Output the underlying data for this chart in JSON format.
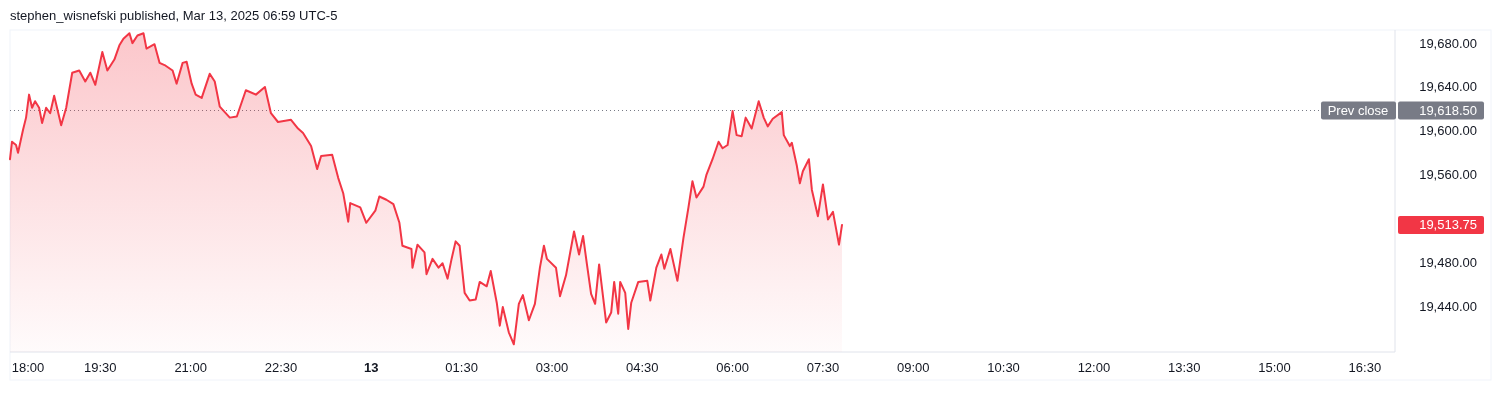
{
  "chart_data": {
    "type": "area",
    "title": "stephen_wisnefski published, Mar 13, 2025 06:59 UTC-5",
    "x": [
      "2025-03-12T18:00",
      "2025-03-12T18:02",
      "2025-03-12T18:06",
      "2025-03-12T18:08",
      "2025-03-12T18:13",
      "2025-03-12T18:16",
      "2025-03-12T18:19",
      "2025-03-12T18:22",
      "2025-03-12T18:25",
      "2025-03-12T18:29",
      "2025-03-12T18:32",
      "2025-03-12T18:36",
      "2025-03-12T18:40",
      "2025-03-12T18:44",
      "2025-03-12T18:51",
      "2025-03-12T18:56",
      "2025-03-12T19:02",
      "2025-03-12T19:09",
      "2025-03-12T19:15",
      "2025-03-12T19:20",
      "2025-03-12T19:25",
      "2025-03-12T19:32",
      "2025-03-12T19:37",
      "2025-03-12T19:44",
      "2025-03-12T19:49",
      "2025-03-12T19:53",
      "2025-03-12T19:59",
      "2025-03-12T20:02",
      "2025-03-12T20:07",
      "2025-03-12T20:13",
      "2025-03-12T20:16",
      "2025-03-12T20:24",
      "2025-03-12T20:29",
      "2025-03-12T20:34",
      "2025-03-12T20:42",
      "2025-03-12T20:46",
      "2025-03-12T20:52",
      "2025-03-12T20:56",
      "2025-03-12T21:01",
      "2025-03-12T21:05",
      "2025-03-12T21:11",
      "2025-03-12T21:19",
      "2025-03-12T21:24",
      "2025-03-12T21:29",
      "2025-03-12T21:39",
      "2025-03-12T21:46",
      "2025-03-12T21:55",
      "2025-03-12T22:05",
      "2025-03-12T22:14",
      "2025-03-12T22:20",
      "2025-03-12T22:27",
      "2025-03-12T22:40",
      "2025-03-12T22:47",
      "2025-03-12T22:52",
      "2025-03-12T23:00",
      "2025-03-12T23:06",
      "2025-03-12T23:10",
      "2025-03-12T23:21",
      "2025-03-12T23:27",
      "2025-03-12T23:32",
      "2025-03-12T23:37",
      "2025-03-12T23:39",
      "2025-03-12T23:49",
      "2025-03-12T23:55",
      "2025-03-13T00:04",
      "2025-03-13T00:08",
      "2025-03-13T00:15",
      "2025-03-13T00:22",
      "2025-03-13T00:28",
      "2025-03-13T00:31",
      "2025-03-13T00:40",
      "2025-03-13T00:41",
      "2025-03-13T00:46",
      "2025-03-13T00:53",
      "2025-03-13T00:55",
      "2025-03-13T01:01",
      "2025-03-13T01:07",
      "2025-03-13T01:11",
      "2025-03-13T01:16",
      "2025-03-13T01:20",
      "2025-03-13T01:24",
      "2025-03-13T01:28",
      "2025-03-13T01:33",
      "2025-03-13T01:38",
      "2025-03-13T01:44",
      "2025-03-13T01:48",
      "2025-03-13T01:55",
      "2025-03-13T01:59",
      "2025-03-13T02:05",
      "2025-03-13T02:08",
      "2025-03-13T02:11",
      "2025-03-13T02:17",
      "2025-03-13T02:22",
      "2025-03-13T02:27",
      "2025-03-13T02:31",
      "2025-03-13T02:37",
      "2025-03-13T02:43",
      "2025-03-13T02:48",
      "2025-03-13T02:52",
      "2025-03-13T02:55",
      "2025-03-13T03:04",
      "2025-03-13T03:08",
      "2025-03-13T03:14",
      "2025-03-13T03:22",
      "2025-03-13T03:27",
      "2025-03-13T03:31",
      "2025-03-13T03:35",
      "2025-03-13T03:39",
      "2025-03-13T03:43",
      "2025-03-13T03:47",
      "2025-03-13T03:54",
      "2025-03-13T03:59",
      "2025-03-13T04:02",
      "2025-03-13T04:06",
      "2025-03-13T04:08",
      "2025-03-13T04:13",
      "2025-03-13T04:16",
      "2025-03-13T04:19",
      "2025-03-13T04:26",
      "2025-03-13T04:35",
      "2025-03-13T04:38",
      "2025-03-13T04:44",
      "2025-03-13T04:49",
      "2025-03-13T04:52",
      "2025-03-13T04:58",
      "2025-03-13T05:05",
      "2025-03-13T05:11",
      "2025-03-13T05:16",
      "2025-03-13T05:20",
      "2025-03-13T05:24",
      "2025-03-13T05:31",
      "2025-03-13T05:34",
      "2025-03-13T05:40",
      "2025-03-13T05:46",
      "2025-03-13T05:50",
      "2025-03-13T05:55",
      "2025-03-13T06:00",
      "2025-03-13T06:04",
      "2025-03-13T06:09",
      "2025-03-13T06:13",
      "2025-03-13T06:19",
      "2025-03-13T06:26",
      "2025-03-13T06:31",
      "2025-03-13T06:35",
      "2025-03-13T06:40",
      "2025-03-13T06:49",
      "2025-03-13T06:51",
      "2025-03-13T06:57",
      "2025-03-13T06:59",
      "2025-03-13T07:04",
      "2025-03-13T07:07",
      "2025-03-13T07:10",
      "2025-03-13T07:16",
      "2025-03-13T07:19",
      "2025-03-13T07:25",
      "2025-03-13T07:30",
      "2025-03-13T07:35",
      "2025-03-13T07:40",
      "2025-03-13T07:46",
      "2025-03-13T07:49"
    ],
    "series": [
      {
        "color": "#f23645",
        "values": [
          19574,
          19590,
          19587,
          19580,
          19601,
          19612,
          19633,
          19621,
          19627,
          19621,
          19607,
          19621,
          19616,
          19632,
          19605,
          19621,
          19653,
          19655,
          19645,
          19653,
          19642,
          19672,
          19655,
          19665,
          19678,
          19684,
          19689,
          19680,
          19687,
          19689,
          19675,
          19679,
          19662,
          19660,
          19655,
          19643,
          19662,
          19663,
          19643,
          19633,
          19630,
          19652,
          19645,
          19622,
          19612,
          19613,
          19637,
          19633,
          19640,
          19616,
          19608,
          19610,
          19602,
          19598,
          19586,
          19565,
          19577,
          19578,
          19557,
          19543,
          19517,
          19534,
          19530,
          19516,
          19527,
          19540,
          19537,
          19533,
          19516,
          19495,
          19492,
          19475,
          19496,
          19489,
          19469,
          19483,
          19475,
          19479,
          19465,
          19483,
          19499,
          19495,
          19452,
          19445,
          19446,
          19462,
          19458,
          19472,
          19443,
          19422,
          19439,
          19416,
          19405,
          19442,
          19450,
          19427,
          19442,
          19475,
          19495,
          19483,
          19475,
          19449,
          19468,
          19508,
          19487,
          19504,
          19477,
          19451,
          19442,
          19478,
          19425,
          19434,
          19462,
          19433,
          19462,
          19452,
          19419,
          19443,
          19462,
          19463,
          19445,
          19475,
          19487,
          19474,
          19492,
          19463,
          19502,
          19530,
          19554,
          19539,
          19549,
          19560,
          19574,
          19590,
          19584,
          19587,
          19618,
          19596,
          19595,
          19612,
          19602,
          19627,
          19612,
          19604,
          19611,
          19617,
          19596,
          19586,
          19589,
          19568,
          19552,
          19563,
          19574,
          19546,
          19522,
          19551,
          19519,
          19526,
          19496,
          19514
        ]
      }
    ],
    "xlim": [
      "2025-03-12T18:00",
      "2025-03-13T17:00"
    ],
    "xticks": [
      {
        "value": "2025-03-12T18:00",
        "label": "18:00"
      },
      {
        "value": "2025-03-12T19:30",
        "label": "19:30"
      },
      {
        "value": "2025-03-12T21:00",
        "label": "21:00"
      },
      {
        "value": "2025-03-12T22:30",
        "label": "22:30"
      },
      {
        "value": "2025-03-13T00:00",
        "label": "13"
      },
      {
        "value": "2025-03-13T01:30",
        "label": "01:30"
      },
      {
        "value": "2025-03-13T03:00",
        "label": "03:00"
      },
      {
        "value": "2025-03-13T04:30",
        "label": "04:30"
      },
      {
        "value": "2025-03-13T06:00",
        "label": "06:00"
      },
      {
        "value": "2025-03-13T07:30",
        "label": "07:30"
      },
      {
        "value": "2025-03-13T09:00",
        "label": "09:00"
      },
      {
        "value": "2025-03-13T10:30",
        "label": "10:30"
      },
      {
        "value": "2025-03-13T12:00",
        "label": "12:00"
      },
      {
        "value": "2025-03-13T13:30",
        "label": "13:30"
      },
      {
        "value": "2025-03-13T15:00",
        "label": "15:00"
      },
      {
        "value": "2025-03-13T16:30",
        "label": "16:30"
      }
    ],
    "ylim": [
      19398,
      19692
    ],
    "yticks": [
      {
        "value": 19440,
        "label": "19,440.00"
      },
      {
        "value": 19480,
        "label": "19,480.00"
      },
      {
        "value": 19560,
        "label": "19,560.00"
      },
      {
        "value": 19600,
        "label": "19,600.00"
      },
      {
        "value": 19640,
        "label": "19,640.00"
      },
      {
        "value": 19680,
        "label": "19,680.00"
      }
    ],
    "ref_lines": [
      {
        "axis": "y",
        "value": 19618.5,
        "label": "Prev close",
        "color": "#787b86",
        "line_style": "dotted"
      }
    ],
    "annotations": [
      "19,618.50",
      "19,513.75"
    ],
    "grid": false
  }
}
